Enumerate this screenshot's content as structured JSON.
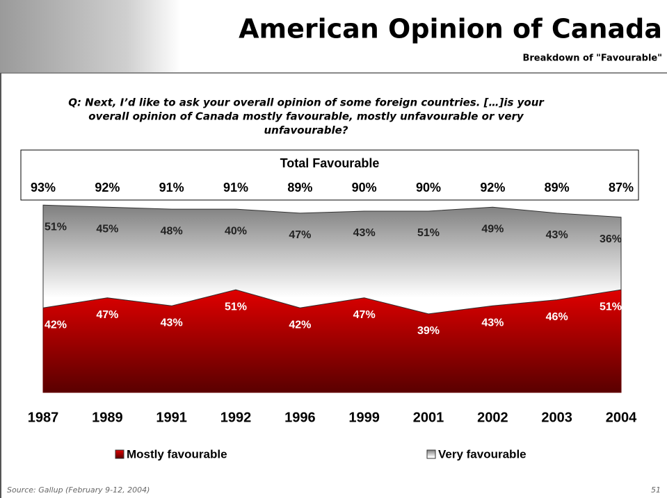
{
  "header": {
    "title": "American Opinion of Canada",
    "subtitle": "Breakdown of \"Favourable\""
  },
  "question": [
    "Q: Next, I’d like to ask your overall opinion of some foreign countries. […]is your",
    "overall opinion of Canada mostly favourable, mostly unfavourable or very",
    "unfavourable?"
  ],
  "chart_data": {
    "type": "area",
    "stacked": true,
    "categories": [
      "1987",
      "1989",
      "1991",
      "1992",
      "1996",
      "1999",
      "2001",
      "2002",
      "2003",
      "2004"
    ],
    "series": [
      {
        "name": "Mostly favourable",
        "color": "#c00000",
        "values": [
          42,
          47,
          43,
          51,
          42,
          47,
          39,
          43,
          46,
          51
        ],
        "value_labels": [
          "42%",
          "47%",
          "43%",
          "51%",
          "42%",
          "47%",
          "39%",
          "43%",
          "46%",
          "51%"
        ]
      },
      {
        "name": "Very favourable",
        "color": "#7f7f7f",
        "values": [
          51,
          45,
          48,
          40,
          47,
          43,
          51,
          49,
          43,
          36
        ],
        "value_labels": [
          "51%",
          "45%",
          "48%",
          "40%",
          "47%",
          "43%",
          "51%",
          "49%",
          "43%",
          "36%"
        ]
      }
    ],
    "total": {
      "title": "Total Favourable",
      "values": [
        93,
        92,
        91,
        91,
        89,
        90,
        90,
        92,
        89,
        87
      ],
      "value_labels": [
        "93%",
        "92%",
        "91%",
        "91%",
        "89%",
        "90%",
        "90%",
        "92%",
        "89%",
        "87%"
      ]
    }
  },
  "footer": {
    "source": "Source: Gallup  (February 9-12, 2004)",
    "page": "51"
  }
}
